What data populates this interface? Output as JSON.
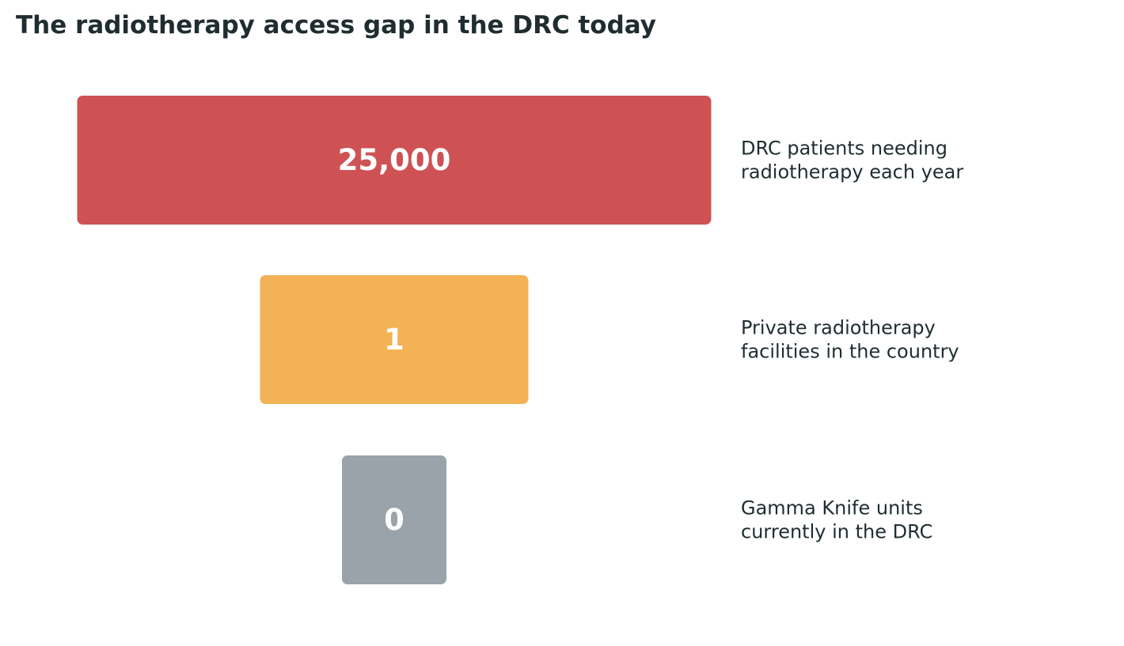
{
  "title": "The radiotherapy access gap in the DRC today",
  "chart_data": {
    "type": "bar",
    "orientation": "horizontal-centered",
    "title": "The radiotherapy access gap in the DRC today",
    "grid": false,
    "items": [
      {
        "value_label": "25,000",
        "value": 25000,
        "description": [
          "DRC patients needing",
          "radiotherapy each year"
        ],
        "color": "#ce5254"
      },
      {
        "value_label": "1",
        "value": 1,
        "description": [
          "Private radiotherapy",
          "facilities in the country"
        ],
        "color": "#f3b256"
      },
      {
        "value_label": "0",
        "value": 0,
        "description": [
          "Gamma Knife units",
          "currently in the DRC"
        ],
        "color": "#9aa3aa"
      }
    ]
  }
}
